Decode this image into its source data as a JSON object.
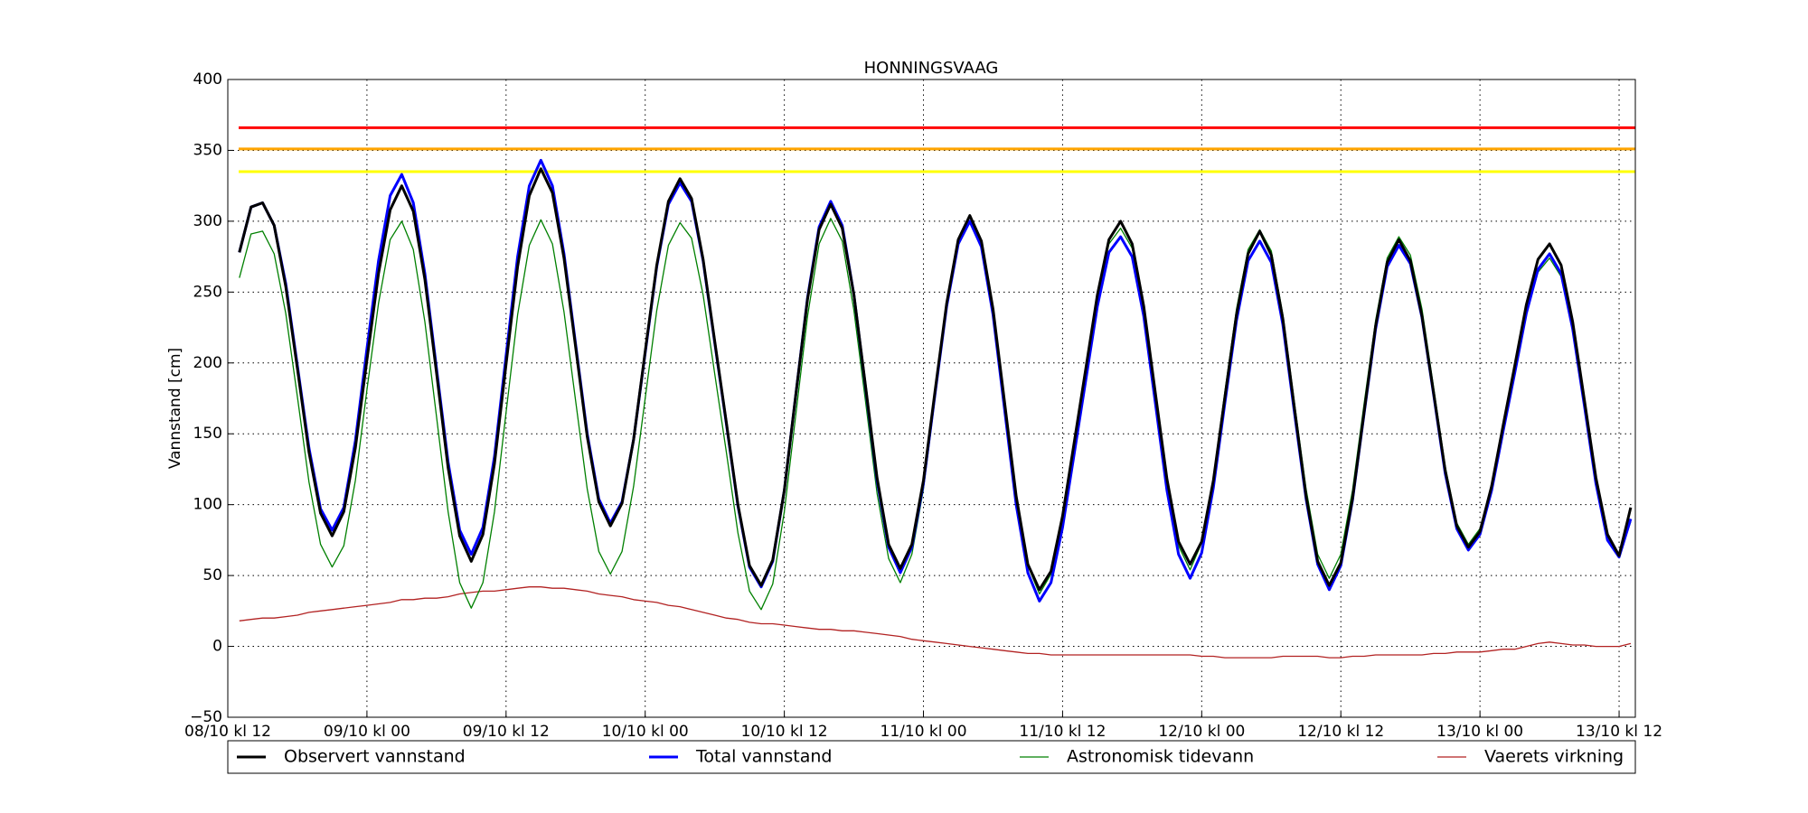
{
  "chart_data": {
    "type": "line",
    "title": "HONNINGSVAAG",
    "y_label": "Vannstand [cm]",
    "x": [
      1,
      2,
      3,
      4,
      5,
      6,
      7,
      8,
      9,
      10,
      11,
      12,
      13,
      14,
      15,
      16,
      17,
      18,
      19,
      20,
      21,
      22,
      23,
      24,
      25,
      26,
      27,
      28,
      29,
      30,
      31,
      32,
      33,
      34,
      35,
      36,
      37,
      38,
      39,
      40,
      41,
      42,
      43,
      44,
      45,
      46,
      47,
      48,
      49,
      50,
      51,
      52,
      53,
      54,
      55,
      56,
      57,
      58,
      59,
      60,
      61,
      62,
      63,
      64,
      65,
      66,
      67,
      68,
      69,
      70,
      71,
      72,
      73,
      74,
      75,
      76,
      77,
      78,
      79,
      80,
      81,
      82,
      83,
      84,
      85,
      86,
      87,
      88,
      89,
      90,
      91,
      92,
      93,
      94,
      95,
      96,
      97,
      98,
      99,
      100,
      101,
      102,
      103,
      104,
      105,
      106,
      107,
      108,
      109,
      110,
      111,
      112,
      113,
      114,
      115,
      116,
      117,
      118,
      119,
      120,
      121
    ],
    "xlim": [
      0,
      121.4
    ],
    "xticks": [
      {
        "value": 0,
        "label": "08/10 kl 12"
      },
      {
        "value": 12,
        "label": "09/10 kl 00"
      },
      {
        "value": 24,
        "label": "09/10 kl 12"
      },
      {
        "value": 36,
        "label": "10/10 kl 00"
      },
      {
        "value": 48,
        "label": "10/10 kl 12"
      },
      {
        "value": 60,
        "label": "11/10 kl 00"
      },
      {
        "value": 72,
        "label": "11/10 kl 12"
      },
      {
        "value": 84,
        "label": "12/10 kl 00"
      },
      {
        "value": 96,
        "label": "12/10 kl 12"
      },
      {
        "value": 108,
        "label": "13/10 kl 00"
      },
      {
        "value": 120,
        "label": "13/10 kl 12"
      }
    ],
    "ylim": [
      -50,
      400
    ],
    "yticks": [
      {
        "value": -50,
        "label": "−50"
      },
      0,
      50,
      100,
      150,
      200,
      250,
      300,
      350,
      400
    ],
    "grid": true,
    "reference_lines": [
      {
        "value": 366,
        "color": "#ff0000"
      },
      {
        "value": 351,
        "color": "#ffa500"
      },
      {
        "value": 335,
        "color": "#ffff00"
      }
    ],
    "series": [
      {
        "name": "Observert vannstand",
        "color": "#000000",
        "values": [
          278,
          310,
          313,
          297,
          254,
          196,
          137,
          94,
          78,
          95,
          140,
          202,
          263,
          308,
          325,
          307,
          259,
          193,
          126,
          78,
          60,
          79,
          129,
          199,
          268,
          318,
          337,
          320,
          274,
          211,
          148,
          102,
          85,
          101,
          146,
          208,
          269,
          314,
          330,
          316,
          273,
          215,
          158,
          100,
          57,
          43,
          61,
          110,
          178,
          245,
          294,
          312,
          295,
          248,
          184,
          119,
          72,
          55,
          72,
          117,
          180,
          242,
          287,
          304,
          286,
          238,
          172,
          106,
          58,
          40,
          53,
          92,
          144,
          196,
          248,
          287,
          300,
          284,
          240,
          179,
          118,
          74,
          58,
          74,
          117,
          176,
          234,
          277,
          293,
          276,
          231,
          168,
          106,
          60,
          43,
          59,
          104,
          165,
          226,
          271,
          287,
          272,
          233,
          179,
          124,
          85,
          70,
          81,
          113,
          156,
          198,
          241,
          273,
          284,
          269,
          229,
          174,
          119,
          79,
          64,
          98
        ]
      },
      {
        "name": "Total vannstand",
        "color": "#0000ff",
        "values": [
          278,
          310,
          313,
          297,
          256,
          198,
          140,
          97,
          82,
          98,
          145,
          210,
          272,
          318,
          333,
          313,
          263,
          196,
          130,
          82,
          65,
          84,
          134,
          205,
          275,
          325,
          343,
          325,
          277,
          213,
          150,
          104,
          87,
          102,
          146,
          207,
          268,
          312,
          327,
          314,
          272,
          214,
          157,
          99,
          56,
          42,
          60,
          110,
          178,
          246,
          296,
          314,
          297,
          248,
          183,
          117,
          70,
          52,
          70,
          115,
          178,
          240,
          284,
          300,
          282,
          234,
          167,
          100,
          52,
          32,
          45,
          84,
          136,
          188,
          240,
          278,
          289,
          275,
          233,
          172,
          110,
          65,
          48,
          66,
          112,
          172,
          230,
          272,
          286,
          271,
          227,
          165,
          104,
          58,
          40,
          57,
          103,
          164,
          224,
          268,
          283,
          270,
          232,
          178,
          122,
          83,
          68,
          79,
          110,
          152,
          193,
          235,
          266,
          277,
          263,
          224,
          170,
          115,
          75,
          63,
          90
        ]
      },
      {
        "name": "Astronomisk tidevann",
        "color": "#008000",
        "values": [
          260,
          291,
          293,
          277,
          235,
          176,
          116,
          72,
          56,
          71,
          117,
          181,
          242,
          287,
          300,
          280,
          229,
          162,
          95,
          45,
          27,
          45,
          95,
          165,
          234,
          283,
          301,
          284,
          236,
          173,
          111,
          67,
          51,
          67,
          113,
          175,
          237,
          283,
          299,
          288,
          248,
          192,
          137,
          80,
          39,
          26,
          44,
          95,
          164,
          233,
          284,
          302,
          286,
          237,
          173,
          108,
          62,
          45,
          65,
          111,
          175,
          238,
          283,
          300,
          283,
          236,
          170,
          104,
          57,
          37,
          51,
          90,
          142,
          194,
          246,
          284,
          295,
          281,
          239,
          178,
          116,
          71,
          54,
          73,
          119,
          180,
          238,
          280,
          294,
          279,
          234,
          172,
          111,
          65,
          48,
          65,
          110,
          171,
          230,
          274,
          289,
          276,
          238,
          183,
          127,
          87,
          72,
          83,
          113,
          154,
          195,
          235,
          264,
          274,
          261,
          223,
          169,
          115,
          75,
          63,
          88
        ]
      },
      {
        "name": "Vaerets virkning",
        "color": "#b22222",
        "values": [
          18,
          19,
          20,
          20,
          21,
          22,
          24,
          25,
          26,
          27,
          28,
          29,
          30,
          31,
          33,
          33,
          34,
          34,
          35,
          37,
          38,
          39,
          39,
          40,
          41,
          42,
          42,
          41,
          41,
          40,
          39,
          37,
          36,
          35,
          33,
          32,
          31,
          29,
          28,
          26,
          24,
          22,
          20,
          19,
          17,
          16,
          16,
          15,
          14,
          13,
          12,
          12,
          11,
          11,
          10,
          9,
          8,
          7,
          5,
          4,
          3,
          2,
          1,
          0,
          -1,
          -2,
          -3,
          -4,
          -5,
          -5,
          -6,
          -6,
          -6,
          -6,
          -6,
          -6,
          -6,
          -6,
          -6,
          -6,
          -6,
          -6,
          -6,
          -7,
          -7,
          -8,
          -8,
          -8,
          -8,
          -8,
          -7,
          -7,
          -7,
          -7,
          -8,
          -8,
          -7,
          -7,
          -6,
          -6,
          -6,
          -6,
          -6,
          -5,
          -5,
          -4,
          -4,
          -4,
          -3,
          -2,
          -2,
          0,
          2,
          3,
          2,
          1,
          1,
          0,
          0,
          0,
          2
        ]
      }
    ]
  }
}
